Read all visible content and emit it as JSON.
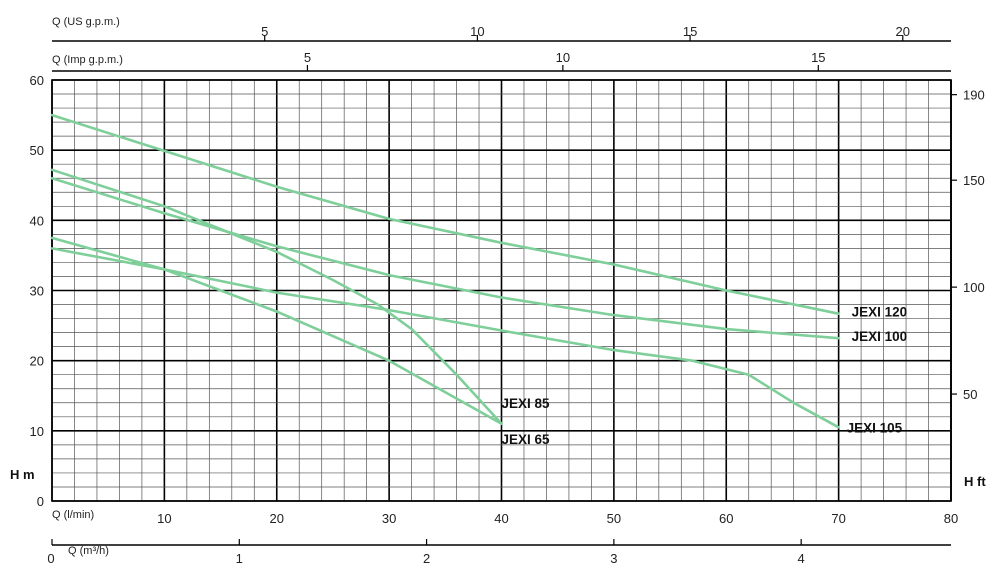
{
  "chart_data": {
    "type": "line",
    "x_axis_bottom": {
      "label": "Q (l/min)",
      "ticks": [
        0,
        10,
        20,
        30,
        40,
        50,
        60,
        70,
        80
      ],
      "range": [
        0,
        80
      ]
    },
    "x_axis_m3h": {
      "label": "Q (m³/h)",
      "ticks": [
        0,
        1,
        2,
        3,
        4
      ]
    },
    "x_axis_imp": {
      "label": "Q (Imp g.p.m.)",
      "ticks": [
        5,
        10,
        15
      ]
    },
    "x_axis_us": {
      "label": "Q (US g.p.m.)",
      "ticks": [
        5,
        10,
        15,
        20
      ]
    },
    "y_axis_left": {
      "label": "H m",
      "ticks": [
        0,
        10,
        20,
        30,
        40,
        50,
        60
      ],
      "range": [
        0,
        60
      ]
    },
    "y_axis_right": {
      "label": "H ft",
      "ticks": [
        50,
        100,
        150,
        190
      ]
    },
    "grid": true,
    "line_color": "#7fcf9a",
    "series": [
      {
        "name": "JEXI 120",
        "x": [
          0,
          10,
          20,
          30,
          40,
          50,
          60,
          70
        ],
        "y": [
          55,
          49.9,
          44.8,
          40.2,
          36.8,
          33.7,
          30.0,
          26.7
        ]
      },
      {
        "name": "JEXI 100",
        "x": [
          0,
          10,
          20,
          30,
          40,
          50,
          60,
          70
        ],
        "y": [
          46.0,
          41.0,
          36.3,
          32.2,
          29.0,
          26.5,
          24.5,
          23.2
        ]
      },
      {
        "name": "JEXI 105",
        "x": [
          0,
          10,
          20,
          30,
          40,
          50,
          57,
          62,
          66,
          70
        ],
        "y": [
          36.0,
          33.0,
          29.7,
          27.2,
          24.3,
          21.5,
          20.0,
          18.0,
          14.0,
          10.5
        ]
      },
      {
        "name": "JEXI 85",
        "x": [
          0,
          10,
          20,
          25,
          29,
          32,
          36,
          40
        ],
        "y": [
          47.2,
          42.0,
          35.5,
          31.5,
          28.0,
          24.5,
          18.0,
          11.0
        ]
      },
      {
        "name": "JEXI 65",
        "x": [
          0,
          10,
          20,
          30,
          40
        ],
        "y": [
          37.5,
          33.0,
          27.0,
          20.0,
          11.0
        ]
      }
    ]
  }
}
